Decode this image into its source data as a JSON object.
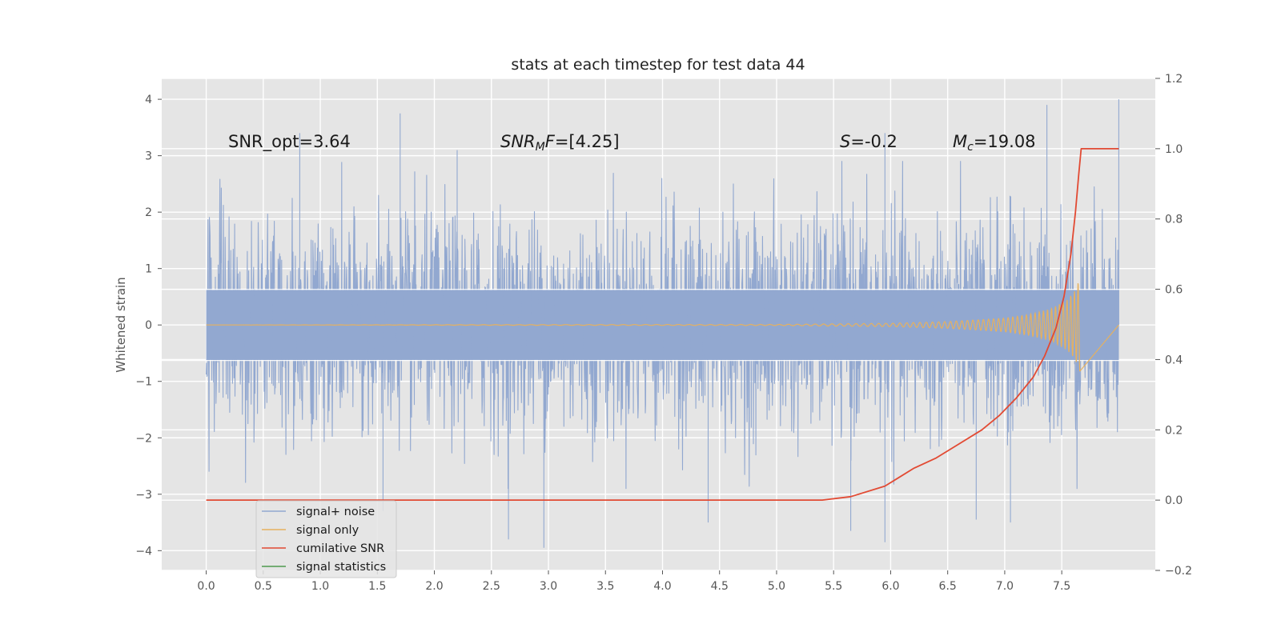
{
  "chart_data": {
    "type": "line",
    "title": "stats at each timestep for test data 44",
    "xlabel": "",
    "ylabel": "Whitened strain",
    "ylabel_right": "",
    "xlim": [
      -0.39,
      8.32
    ],
    "ylim": [
      -4.35,
      4.37
    ],
    "ylim_right": [
      -0.2,
      1.2
    ],
    "grid": true,
    "x_ticks": [
      0.0,
      0.5,
      1.0,
      1.5,
      2.0,
      2.5,
      3.0,
      3.5,
      4.0,
      4.5,
      5.0,
      5.5,
      6.0,
      6.5,
      7.0,
      7.5
    ],
    "x_tick_labels": [
      "0.0",
      "0.5",
      "1.0",
      "1.5",
      "2.0",
      "2.5",
      "3.0",
      "3.5",
      "4.0",
      "4.5",
      "5.0",
      "5.5",
      "6.0",
      "6.5",
      "7.0",
      "7.5"
    ],
    "y_ticks": [
      -4,
      -3,
      -2,
      -1,
      0,
      1,
      2,
      3,
      4
    ],
    "y_tick_labels": [
      "−4",
      "−3",
      "−2",
      "−1",
      "0",
      "1",
      "2",
      "3",
      "4"
    ],
    "y_ticks_right": [
      -0.2,
      0.0,
      0.2,
      0.4,
      0.6,
      0.8,
      1.0,
      1.2
    ],
    "y_tick_labels_right": [
      "−0.2",
      "0.0",
      "0.2",
      "0.4",
      "0.6",
      "0.8",
      "1.0",
      "1.2"
    ],
    "series": [
      {
        "name": "signal+ noise",
        "color": "#92a8d0",
        "axis": "left",
        "x_range": [
          0.0,
          8.0
        ],
        "typical_envelope": [
          -2.3,
          2.2
        ],
        "spikes": [
          {
            "x": 1.7,
            "y": 3.75
          },
          {
            "x": 2.2,
            "y": 3.1
          },
          {
            "x": 5.95,
            "y": 3.4
          },
          {
            "x": 7.37,
            "y": 3.9
          },
          {
            "x": 8.0,
            "y": 4.0
          },
          {
            "x": 0.82,
            "y": 3.4
          },
          {
            "x": 2.96,
            "y": -3.95
          },
          {
            "x": 2.65,
            "y": -3.8
          },
          {
            "x": 5.95,
            "y": -3.85
          },
          {
            "x": 7.05,
            "y": -3.5
          },
          {
            "x": 4.4,
            "y": -3.5
          },
          {
            "x": 6.75,
            "y": -3.45
          },
          {
            "x": 5.65,
            "y": -3.65
          },
          {
            "x": 1.55,
            "y": -3.3
          }
        ]
      },
      {
        "name": "signal only",
        "color": "#e6b15f",
        "axis": "left",
        "x": [
          0.0,
          5.0,
          6.0,
          6.5,
          7.0,
          7.2,
          7.4,
          7.55,
          7.62,
          7.66,
          7.67
        ],
        "amplitude": [
          0.0,
          0.01,
          0.03,
          0.06,
          0.12,
          0.18,
          0.28,
          0.45,
          0.62,
          0.85,
          0.0
        ]
      },
      {
        "name": "cumilative SNR",
        "color": "#e24a33",
        "axis": "right",
        "x": [
          0.0,
          5.4,
          5.65,
          5.95,
          6.05,
          6.2,
          6.4,
          6.6,
          6.8,
          6.95,
          7.1,
          7.25,
          7.35,
          7.45,
          7.52,
          7.58,
          7.62,
          7.65,
          7.67,
          8.0
        ],
        "y": [
          0.0,
          0.0,
          0.01,
          0.04,
          0.06,
          0.09,
          0.12,
          0.16,
          0.2,
          0.24,
          0.29,
          0.35,
          0.41,
          0.49,
          0.58,
          0.7,
          0.82,
          0.93,
          1.0,
          1.0
        ]
      },
      {
        "name": "signal statistics",
        "color": "#348abd",
        "legend_color": "#4f9a4f",
        "axis": "left",
        "x": [],
        "y": []
      }
    ],
    "annotations": [
      {
        "text": "SNR_opt=3.64"
      },
      {
        "text": "SNR",
        "sub": "M",
        "suffix": "F=[4.25]"
      },
      {
        "text": "S",
        "suffix": "=-0.2"
      },
      {
        "text": "M",
        "sub": "c",
        "suffix": "=19.08"
      }
    ],
    "legend": {
      "location": "lower-left",
      "entries": [
        "signal+ noise",
        "signal only",
        "cumilative SNR",
        "signal statistics"
      ]
    }
  }
}
